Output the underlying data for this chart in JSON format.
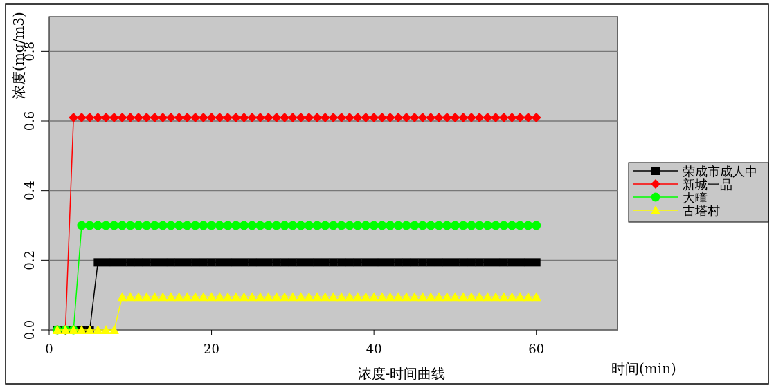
{
  "chart_data": {
    "type": "line",
    "title": "浓度-时间曲线",
    "xlabel": "时间(min)",
    "ylabel": "浓度(mg/m3)",
    "x": [
      1,
      2,
      3,
      4,
      5,
      6,
      7,
      8,
      9,
      10,
      11,
      12,
      13,
      14,
      15,
      16,
      17,
      18,
      19,
      20,
      21,
      22,
      23,
      24,
      25,
      26,
      27,
      28,
      29,
      30,
      31,
      32,
      33,
      34,
      35,
      36,
      37,
      38,
      39,
      40,
      41,
      42,
      43,
      44,
      45,
      46,
      47,
      48,
      49,
      50,
      51,
      52,
      53,
      54,
      55,
      56,
      57,
      58,
      59,
      60
    ],
    "xlim": [
      0,
      70
    ],
    "xticks": [
      0,
      20,
      40,
      60
    ],
    "ylim": [
      0,
      0.9
    ],
    "yticks": [
      {
        "value": 0,
        "label": "0.0"
      },
      {
        "value": 0.2,
        "label": "0.2"
      },
      {
        "value": 0.4,
        "label": "0.4"
      },
      {
        "value": 0.6,
        "label": "0.6"
      },
      {
        "value": 0.8,
        "label": "0.8"
      }
    ],
    "grid": "y",
    "legend": "right",
    "series": [
      {
        "name": "荣成市成人中",
        "color": "#000000",
        "marker": "square",
        "values": [
          0,
          0,
          0,
          0,
          0,
          0.194,
          0.194,
          0.194,
          0.194,
          0.194,
          0.194,
          0.194,
          0.194,
          0.194,
          0.194,
          0.194,
          0.194,
          0.194,
          0.194,
          0.194,
          0.194,
          0.194,
          0.194,
          0.194,
          0.194,
          0.194,
          0.194,
          0.194,
          0.194,
          0.194,
          0.194,
          0.194,
          0.194,
          0.194,
          0.194,
          0.194,
          0.194,
          0.194,
          0.194,
          0.194,
          0.194,
          0.194,
          0.194,
          0.194,
          0.194,
          0.194,
          0.194,
          0.194,
          0.194,
          0.194,
          0.194,
          0.194,
          0.194,
          0.194,
          0.194,
          0.194,
          0.194,
          0.194,
          0.194,
          0.194
        ]
      },
      {
        "name": "新城一品",
        "color": "#ff0000",
        "marker": "diamond",
        "values": [
          0,
          0,
          0.61,
          0.61,
          0.61,
          0.61,
          0.61,
          0.61,
          0.61,
          0.61,
          0.61,
          0.61,
          0.61,
          0.61,
          0.61,
          0.61,
          0.61,
          0.61,
          0.61,
          0.61,
          0.61,
          0.61,
          0.61,
          0.61,
          0.61,
          0.61,
          0.61,
          0.61,
          0.61,
          0.61,
          0.61,
          0.61,
          0.61,
          0.61,
          0.61,
          0.61,
          0.61,
          0.61,
          0.61,
          0.61,
          0.61,
          0.61,
          0.61,
          0.61,
          0.61,
          0.61,
          0.61,
          0.61,
          0.61,
          0.61,
          0.61,
          0.61,
          0.61,
          0.61,
          0.61,
          0.61,
          0.61,
          0.61,
          0.61,
          0.61
        ]
      },
      {
        "name": "大疃",
        "color": "#00ff00",
        "marker": "circle",
        "values": [
          0,
          0,
          0,
          0.3,
          0.3,
          0.3,
          0.3,
          0.3,
          0.3,
          0.3,
          0.3,
          0.3,
          0.3,
          0.3,
          0.3,
          0.3,
          0.3,
          0.3,
          0.3,
          0.3,
          0.3,
          0.3,
          0.3,
          0.3,
          0.3,
          0.3,
          0.3,
          0.3,
          0.3,
          0.3,
          0.3,
          0.3,
          0.3,
          0.3,
          0.3,
          0.3,
          0.3,
          0.3,
          0.3,
          0.3,
          0.3,
          0.3,
          0.3,
          0.3,
          0.3,
          0.3,
          0.3,
          0.3,
          0.3,
          0.3,
          0.3,
          0.3,
          0.3,
          0.3,
          0.3,
          0.3,
          0.3,
          0.3,
          0.3,
          0.3
        ]
      },
      {
        "name": "古塔村",
        "color": "#ffff00",
        "marker": "triangle",
        "values": [
          0,
          0,
          0,
          0,
          0,
          0,
          0,
          0,
          0.095,
          0.095,
          0.095,
          0.095,
          0.095,
          0.095,
          0.095,
          0.095,
          0.095,
          0.095,
          0.095,
          0.095,
          0.095,
          0.095,
          0.095,
          0.095,
          0.095,
          0.095,
          0.095,
          0.095,
          0.095,
          0.095,
          0.095,
          0.095,
          0.095,
          0.095,
          0.095,
          0.095,
          0.095,
          0.095,
          0.095,
          0.095,
          0.095,
          0.095,
          0.095,
          0.095,
          0.095,
          0.095,
          0.095,
          0.095,
          0.095,
          0.095,
          0.095,
          0.095,
          0.095,
          0.095,
          0.095,
          0.095,
          0.095,
          0.095,
          0.095,
          0.095
        ]
      }
    ]
  }
}
